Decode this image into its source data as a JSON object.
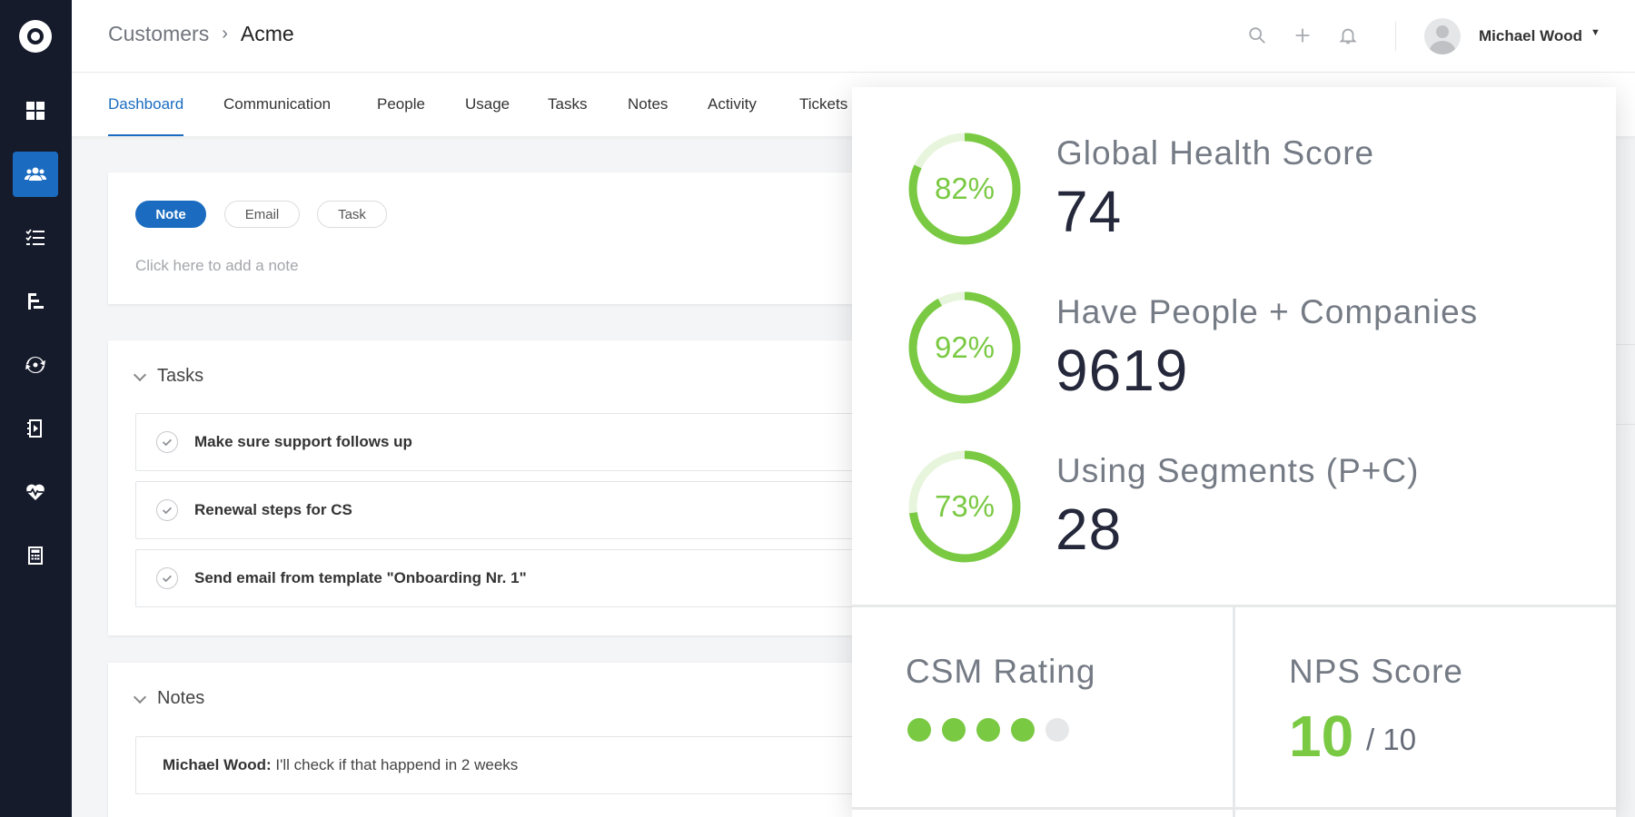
{
  "sidebar": {
    "items": [
      {
        "icon": "dashboard-icon",
        "active": false
      },
      {
        "icon": "customers-icon",
        "active": true
      },
      {
        "icon": "checklist-icon",
        "active": false
      },
      {
        "icon": "segments-icon",
        "active": false
      },
      {
        "icon": "sync-icon",
        "active": false
      },
      {
        "icon": "playbook-icon",
        "active": false
      },
      {
        "icon": "health-icon",
        "active": false
      },
      {
        "icon": "calculator-icon",
        "active": false
      }
    ]
  },
  "header": {
    "breadcrumb_parent": "Customers",
    "breadcrumb_separator": "›",
    "breadcrumb_current": "Acme",
    "user_name": "Michael Wood",
    "icons": [
      "search-icon",
      "plus-icon",
      "bell-icon"
    ]
  },
  "tabs": [
    {
      "label": "Dashboard",
      "active": true
    },
    {
      "label": "Communication",
      "active": false
    },
    {
      "label": "People",
      "active": false
    },
    {
      "label": "Usage",
      "active": false
    },
    {
      "label": "Tasks",
      "active": false
    },
    {
      "label": "Notes",
      "active": false
    },
    {
      "label": "Activity",
      "active": false
    },
    {
      "label": "Tickets",
      "active": false
    }
  ],
  "composer": {
    "types": [
      "Note",
      "Email",
      "Task"
    ],
    "active_type": "Note",
    "placeholder": "Click here to add a note"
  },
  "tasks_section": {
    "title": "Tasks",
    "items": [
      "Make sure support follows up",
      "Renewal steps for CS",
      "Send email from template \"Onboarding Nr. 1\""
    ]
  },
  "notes_section": {
    "title": "Notes",
    "items": [
      {
        "author": "Michael Wood:",
        "text": " I'll check if that happend in 2 weeks"
      }
    ]
  },
  "stats": {
    "metrics": [
      {
        "percent_label": "82%",
        "percent": 82,
        "title": "Global Health Score",
        "value": "74"
      },
      {
        "percent_label": "92%",
        "percent": 92,
        "title": "Have People + Companies",
        "value": "9619"
      },
      {
        "percent_label": "73%",
        "percent": 73,
        "title": "Using Segments (P+C)",
        "value": "28"
      }
    ],
    "csm_rating": {
      "title": "CSM Rating",
      "filled": 4,
      "total": 5
    },
    "nps": {
      "title": "NPS Score",
      "value": "10",
      "max_label": "/ 10"
    }
  },
  "colors": {
    "accent": "#1b6cc0",
    "sidebar_bg": "#161b2c",
    "ring_green": "#7ac943",
    "ring_track": "#e8f5dd",
    "dot_empty": "#e6e7e9"
  }
}
